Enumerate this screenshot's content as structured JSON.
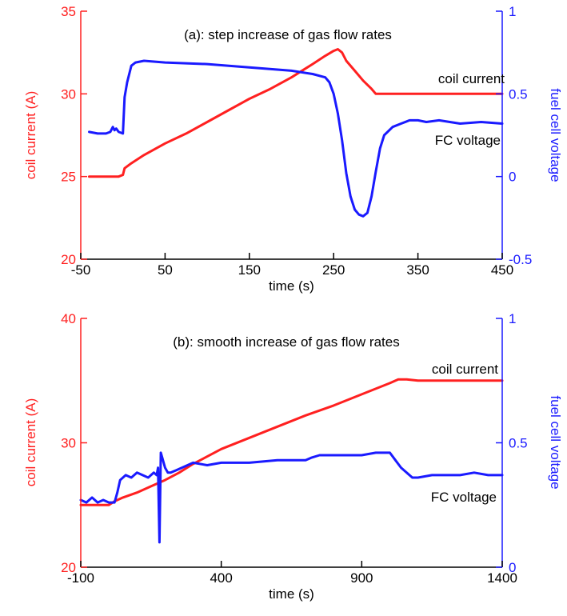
{
  "chart_data": [
    {
      "type": "line",
      "title": "(a): step increase of gas flow rates",
      "xlabel": "time (s)",
      "ylabel": "coil current (A)",
      "y2label": "fuel cell voltage",
      "xlim": [
        -50,
        450
      ],
      "ylim": [
        20,
        35
      ],
      "y2lim": [
        -0.5,
        1
      ],
      "xticks": [
        "-50",
        "50",
        "150",
        "250",
        "350",
        "450"
      ],
      "yticks": [
        "20",
        "25",
        "30",
        "35"
      ],
      "y2ticks": [
        "-0.5",
        "0",
        "0.5",
        "1"
      ],
      "grid": false,
      "colors": {
        "current": "#ff2020",
        "voltage": "#1a1aff",
        "axes": "#000000"
      },
      "annotations": [
        "coil current",
        "FC voltage"
      ],
      "series": [
        {
          "name": "coil current",
          "axis": "left",
          "x": [
            -40,
            -30,
            -20,
            -10,
            -5,
            0,
            2,
            10,
            25,
            50,
            75,
            100,
            125,
            150,
            175,
            200,
            225,
            240,
            250,
            255,
            260,
            265,
            275,
            285,
            295,
            300,
            325,
            350,
            400,
            450
          ],
          "y": [
            25.0,
            25.0,
            25.0,
            25.0,
            25.0,
            25.1,
            25.5,
            25.8,
            26.3,
            27.0,
            27.6,
            28.3,
            29.0,
            29.7,
            30.3,
            31.0,
            31.8,
            32.3,
            32.6,
            32.7,
            32.5,
            32.0,
            31.4,
            30.8,
            30.3,
            30.0,
            30.0,
            30.0,
            30.0,
            30.0
          ]
        },
        {
          "name": "FC voltage",
          "axis": "right",
          "x": [
            -40,
            -30,
            -20,
            -15,
            -12,
            -10,
            -8,
            -5,
            0,
            2,
            5,
            10,
            15,
            25,
            50,
            100,
            150,
            200,
            225,
            240,
            245,
            250,
            255,
            260,
            265,
            270,
            275,
            280,
            285,
            290,
            295,
            300,
            305,
            310,
            320,
            330,
            340,
            350,
            360,
            375,
            400,
            425,
            450
          ],
          "y": [
            0.27,
            0.26,
            0.26,
            0.27,
            0.3,
            0.28,
            0.29,
            0.27,
            0.26,
            0.48,
            0.57,
            0.67,
            0.69,
            0.7,
            0.69,
            0.68,
            0.66,
            0.64,
            0.62,
            0.6,
            0.57,
            0.5,
            0.38,
            0.22,
            0.02,
            -0.12,
            -0.2,
            -0.23,
            -0.24,
            -0.22,
            -0.12,
            0.03,
            0.17,
            0.25,
            0.3,
            0.32,
            0.34,
            0.34,
            0.33,
            0.34,
            0.32,
            0.33,
            0.32
          ]
        }
      ]
    },
    {
      "type": "line",
      "title": "(b): smooth increase of gas flow rates",
      "xlabel": "time (s)",
      "ylabel": "coil current (A)",
      "y2label": "fuel cell voltage",
      "xlim": [
        -100,
        1400
      ],
      "ylim": [
        20,
        40
      ],
      "y2lim": [
        0,
        1
      ],
      "xticks": [
        "-100",
        "400",
        "900",
        "1400"
      ],
      "yticks": [
        "20",
        "30",
        "40"
      ],
      "y2ticks": [
        "0",
        "0.5",
        "1"
      ],
      "grid": false,
      "colors": {
        "current": "#ff2020",
        "voltage": "#1a1aff",
        "axes": "#000000"
      },
      "annotations": [
        "coil current",
        "FC voltage"
      ],
      "series": [
        {
          "name": "coil current",
          "axis": "left",
          "x": [
            -100,
            -50,
            0,
            20,
            50,
            100,
            150,
            200,
            250,
            300,
            400,
            500,
            600,
            700,
            800,
            900,
            1000,
            1030,
            1060,
            1100,
            1200,
            1300,
            1400
          ],
          "y": [
            25.0,
            25.0,
            25.0,
            25.3,
            25.6,
            26.0,
            26.5,
            27.0,
            27.6,
            28.3,
            29.5,
            30.4,
            31.3,
            32.2,
            33.0,
            33.9,
            34.8,
            35.1,
            35.1,
            35.0,
            35.0,
            35.0,
            35.0
          ]
        },
        {
          "name": "FC voltage",
          "axis": "right",
          "x": [
            -100,
            -80,
            -60,
            -40,
            -20,
            0,
            20,
            30,
            40,
            60,
            80,
            100,
            120,
            140,
            160,
            170,
            175,
            180,
            185,
            190,
            200,
            210,
            220,
            240,
            260,
            280,
            300,
            350,
            400,
            500,
            600,
            700,
            720,
            750,
            800,
            900,
            950,
            980,
            1000,
            1020,
            1040,
            1060,
            1080,
            1100,
            1150,
            1200,
            1250,
            1300,
            1350,
            1400
          ],
          "y": [
            0.27,
            0.26,
            0.28,
            0.26,
            0.27,
            0.26,
            0.26,
            0.3,
            0.35,
            0.37,
            0.36,
            0.38,
            0.37,
            0.36,
            0.38,
            0.37,
            0.4,
            0.1,
            0.46,
            0.44,
            0.4,
            0.38,
            0.38,
            0.39,
            0.4,
            0.41,
            0.42,
            0.41,
            0.42,
            0.42,
            0.43,
            0.43,
            0.44,
            0.45,
            0.45,
            0.45,
            0.46,
            0.46,
            0.46,
            0.43,
            0.4,
            0.38,
            0.36,
            0.36,
            0.37,
            0.37,
            0.37,
            0.38,
            0.37,
            0.37
          ]
        }
      ]
    }
  ]
}
